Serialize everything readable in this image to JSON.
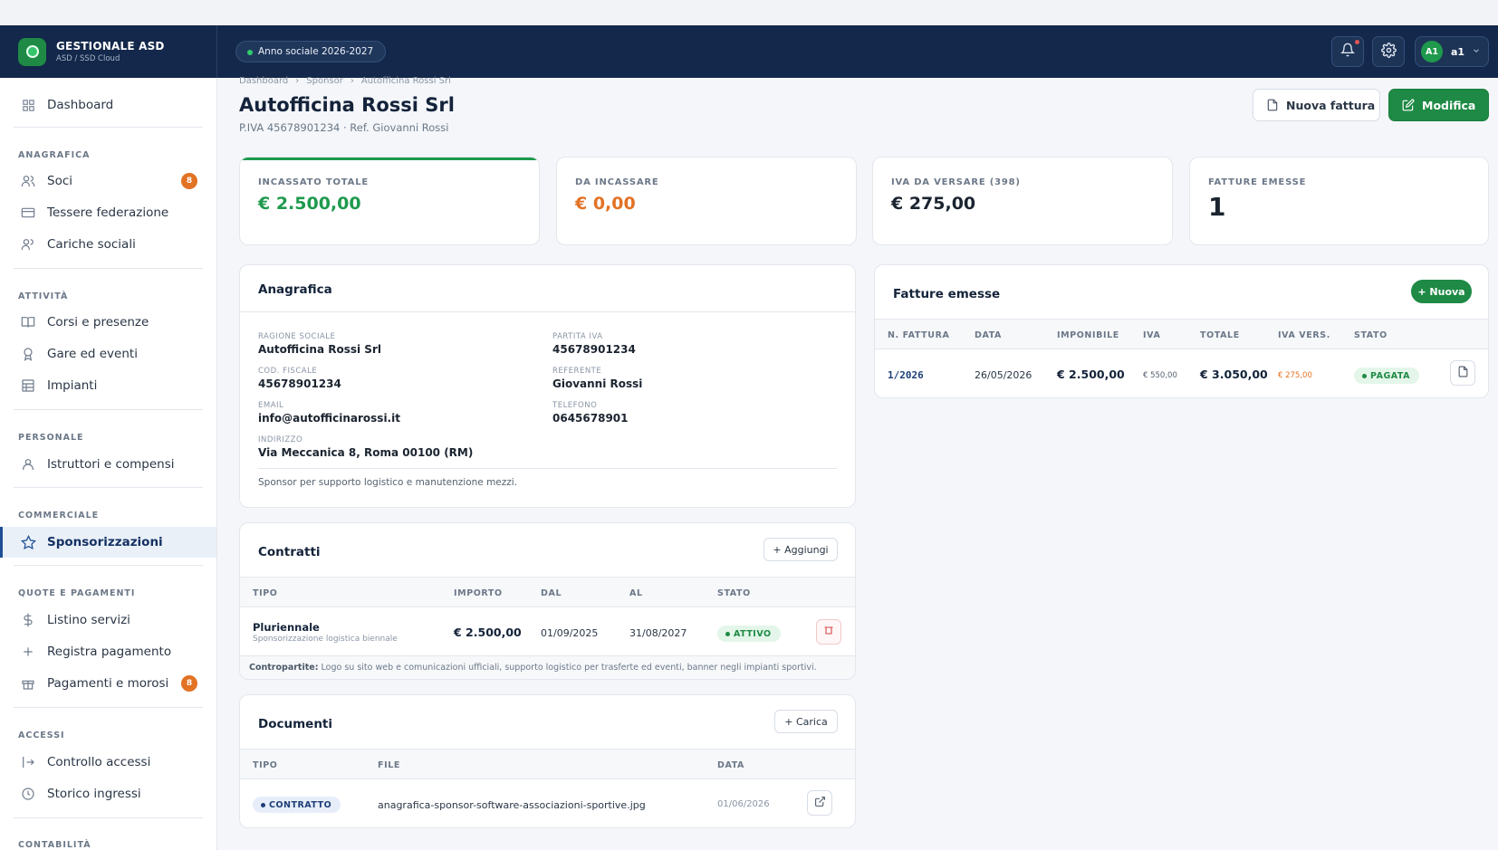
{
  "app": {
    "title": "GESTIONALE ASD",
    "subtitle": "ASD / SSD Cloud",
    "season": "Anno sociale 2026-2027"
  },
  "user": {
    "initials": "A1",
    "name": "a1"
  },
  "sidebar": {
    "dashboard": "Dashboard",
    "sections": {
      "anagrafica": "ANAGRAFICA",
      "attivita": "ATTIVITÀ",
      "personale": "PERSONALE",
      "commerciale": "COMMERCIALE",
      "quote": "QUOTE E PAGAMENTI",
      "accessi": "ACCESSI",
      "contabilita": "CONTABILITÀ"
    },
    "items": {
      "soci": "Soci",
      "soci_badge": "8",
      "tessere": "Tessere federazione",
      "cariche": "Cariche sociali",
      "corsi": "Corsi e presenze",
      "gare": "Gare ed eventi",
      "impianti": "Impianti",
      "istruttori": "Istruttori e compensi",
      "sponsorizzazioni": "Sponsorizzazioni",
      "listino": "Listino servizi",
      "registra": "Registra pagamento",
      "pagamenti": "Pagamenti e morosi",
      "pagamenti_badge": "8",
      "controllo": "Controllo accessi",
      "storico": "Storico ingressi"
    }
  },
  "breadcrumb": [
    "Dashboard",
    "Sponsor",
    "Autofficina Rossi Srl"
  ],
  "page": {
    "title": "Autofficina Rossi Srl",
    "subtitle": "P.IVA 45678901234 · Ref. Giovanni Rossi"
  },
  "actions": {
    "new_invoice": "Nuova fattura",
    "edit": "Modifica"
  },
  "stats": [
    {
      "label": "INCASSATO TOTALE",
      "value": "€ 2.500,00",
      "color": "#1e9a4d"
    },
    {
      "label": "DA INCASSARE",
      "value": "€ 0,00",
      "color": "#e27224"
    },
    {
      "label": "IVA DA VERSARE (398)",
      "value": "€ 275,00",
      "color": "#14233a"
    },
    {
      "label": "FATTURE EMESSE",
      "value": "1",
      "color": "#14233a"
    }
  ],
  "anagrafica": {
    "title": "Anagrafica",
    "ragione_sociale_label": "RAGIONE SOCIALE",
    "ragione_sociale": "Autofficina Rossi Srl",
    "partita_iva_label": "PARTITA IVA",
    "partita_iva": "45678901234",
    "cod_fiscale_label": "COD. FISCALE",
    "cod_fiscale": "45678901234",
    "referente_label": "REFERENTE",
    "referente": "Giovanni Rossi",
    "email_label": "EMAIL",
    "email": "info@autofficinarossi.it",
    "telefono_label": "TELEFONO",
    "telefono": "0645678901",
    "indirizzo_label": "INDIRIZZO",
    "indirizzo": "Via Meccanica 8, Roma 00100 (RM)",
    "note": "Sponsor per supporto logistico e manutenzione mezzi."
  },
  "fatture": {
    "title": "Fatture emesse",
    "new_label": "+ Nuova",
    "headers": [
      "N. FATTURA",
      "DATA",
      "IMPONIBILE",
      "IVA",
      "TOTALE",
      "IVA VERS.",
      "STATO"
    ],
    "rows": [
      {
        "numero": "1/2026",
        "data": "26/05/2026",
        "imponibile": "€ 2.500,00",
        "iva": "€ 550,00",
        "totale": "€ 3.050,00",
        "iva_vers": "€ 275,00",
        "stato": "PAGATA"
      }
    ]
  },
  "contratti": {
    "title": "Contratti",
    "add_label": "+ Aggiungi",
    "headers": [
      "TIPO",
      "IMPORTO",
      "DAL",
      "AL",
      "STATO"
    ],
    "rows": [
      {
        "tipo": "Pluriennale",
        "descrizione": "Sponsorizzazione logistica biennale",
        "importo": "€ 2.500,00",
        "dal": "01/09/2025",
        "al": "31/08/2027",
        "stato": "ATTIVO"
      }
    ],
    "contropartite_label": "Contropartite:",
    "contropartite": "Logo su sito web e comunicazioni ufficiali, supporto logistico per trasferte ed eventi, banner negli impianti sportivi."
  },
  "documenti": {
    "title": "Documenti",
    "upload_label": "+ Carica",
    "headers": [
      "TIPO",
      "FILE",
      "DATA"
    ],
    "rows": [
      {
        "tipo": "CONTRATTO",
        "file": "anagrafica-sponsor-software-associazioni-sportive.jpg",
        "data": "01/06/2026"
      }
    ]
  }
}
